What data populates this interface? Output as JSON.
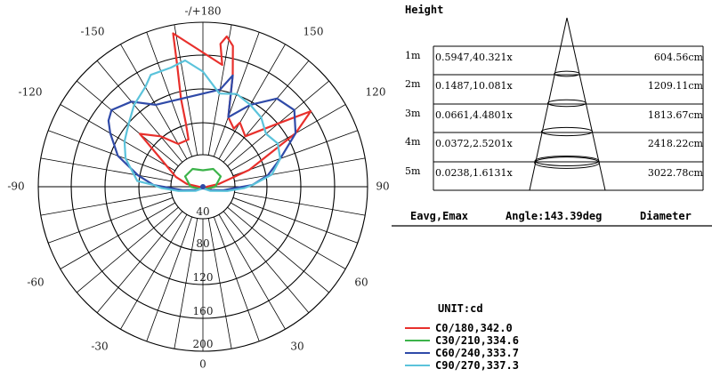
{
  "chart_data": {
    "type": "polar",
    "polar_diagram": {
      "angle_labels_top": [
        "-/+180",
        "-150",
        "150",
        "-120",
        "120",
        "-90",
        "90"
      ],
      "angle_labels_bottom": [
        "-60",
        "60",
        "-30",
        "30",
        "0"
      ],
      "radial_labels": [
        "40",
        "80",
        "120",
        "160",
        "200"
      ],
      "series": [
        {
          "name": "C0/180,342.0",
          "color": "#e8302c",
          "points": [
            [
              -169,
              190
            ],
            [
              -168,
              150
            ],
            [
              -166,
              110
            ],
            [
              -165,
              80
            ],
            [
              -163,
              60
            ],
            [
              -150,
              60
            ],
            [
              -140,
              80
            ],
            [
              -130,
              100
            ],
            [
              -110,
              35
            ],
            [
              -100,
              20
            ],
            [
              -90,
              5
            ],
            [
              -70,
              2
            ],
            [
              -40,
              2
            ],
            [
              0,
              2
            ],
            [
              40,
              2
            ],
            [
              70,
              4
            ],
            [
              80,
              10
            ],
            [
              90,
              5
            ],
            [
              100,
              20
            ],
            [
              110,
              60
            ],
            [
              120,
              130
            ],
            [
              125,
              160
            ],
            [
              130,
              120
            ],
            [
              140,
              80
            ],
            [
              150,
              90
            ],
            [
              152,
              80
            ],
            [
              160,
              90
            ],
            [
              165,
              140
            ],
            [
              168,
              175
            ],
            [
              171,
              185
            ],
            [
              173,
              175
            ],
            [
              171,
              150
            ]
          ]
        },
        {
          "name": "C30/210,334.6",
          "color": "#3cb34a",
          "points": [
            [
              -180,
              20
            ],
            [
              -150,
              25
            ],
            [
              -120,
              25
            ],
            [
              -90,
              15
            ],
            [
              -60,
              5
            ],
            [
              0,
              2
            ],
            [
              60,
              5
            ],
            [
              90,
              15
            ],
            [
              120,
              25
            ],
            [
              150,
              25
            ],
            [
              180,
              20
            ]
          ]
        },
        {
          "name": "C60/240,333.7",
          "color": "#2f4aa8",
          "points": [
            [
              -150,
              115
            ],
            [
              -140,
              135
            ],
            [
              -130,
              145
            ],
            [
              -125,
              140
            ],
            [
              -120,
              130
            ],
            [
              -110,
              110
            ],
            [
              -100,
              80
            ],
            [
              -92,
              60
            ],
            [
              -88,
              40
            ],
            [
              -80,
              25
            ],
            [
              -60,
              8
            ],
            [
              0,
              2
            ],
            [
              60,
              8
            ],
            [
              80,
              25
            ],
            [
              88,
              40
            ],
            [
              92,
              60
            ],
            [
              100,
              80
            ],
            [
              110,
              100
            ],
            [
              120,
              130
            ],
            [
              130,
              145
            ],
            [
              140,
              140
            ],
            [
              150,
              115
            ],
            [
              160,
              90
            ],
            [
              165,
              140
            ],
            [
              170,
              120
            ]
          ]
        },
        {
          "name": "C90/270,337.3",
          "color": "#5bc3db",
          "points": [
            [
              -180,
              140
            ],
            [
              -172,
              155
            ],
            [
              -165,
              150
            ],
            [
              -155,
              150
            ],
            [
              -150,
              140
            ],
            [
              -140,
              130
            ],
            [
              -130,
              118
            ],
            [
              -120,
              110
            ],
            [
              -110,
              100
            ],
            [
              -100,
              85
            ],
            [
              -95,
              80
            ],
            [
              -92,
              60
            ],
            [
              -88,
              50
            ],
            [
              -80,
              30
            ],
            [
              -60,
              10
            ],
            [
              0,
              2
            ],
            [
              60,
              10
            ],
            [
              80,
              30
            ],
            [
              88,
              50
            ],
            [
              92,
              60
            ],
            [
              100,
              85
            ],
            [
              110,
              100
            ],
            [
              120,
              105
            ],
            [
              130,
              100
            ],
            [
              140,
              110
            ],
            [
              150,
              115
            ],
            [
              160,
              120
            ],
            [
              170,
              115
            ],
            [
              180,
              140
            ]
          ]
        }
      ]
    },
    "table": {
      "title": "Height",
      "rows": [
        {
          "height": "1m",
          "eavg_emax": "0.5947,40.321x",
          "diameter": "604.56cm"
        },
        {
          "height": "2m",
          "eavg_emax": "0.1487,10.081x",
          "diameter": "1209.11cm"
        },
        {
          "height": "3m",
          "eavg_emax": "0.0661,4.4801x",
          "diameter": "1813.67cm"
        },
        {
          "height": "4m",
          "eavg_emax": "0.0372,2.5201x",
          "diameter": "2418.22cm"
        },
        {
          "height": "5m",
          "eavg_emax": "0.0238,1.6131x",
          "diameter": "3022.78cm"
        }
      ],
      "footer_eavg": "Eavg,Emax",
      "footer_angle": "Angle:143.39deg",
      "footer_diameter": "Diameter"
    },
    "unit": "UNIT:cd",
    "legend": [
      {
        "label": "C0/180,342.0",
        "color": "#e8302c"
      },
      {
        "label": "C30/210,334.6",
        "color": "#3cb34a"
      },
      {
        "label": "C60/240,333.7",
        "color": "#2f4aa8"
      },
      {
        "label": "C90/270,337.3",
        "color": "#5bc3db"
      }
    ]
  }
}
